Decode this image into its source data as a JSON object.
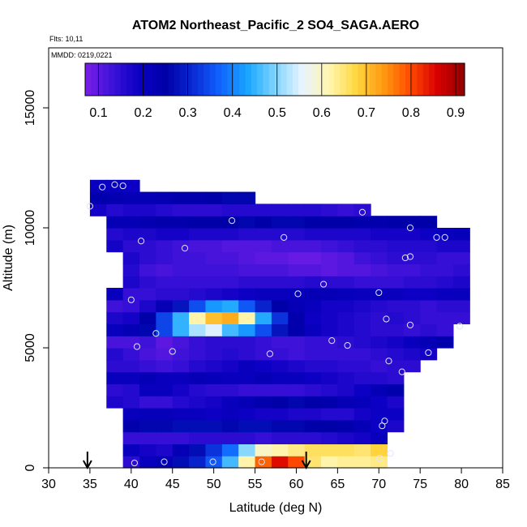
{
  "chart_data": {
    "type": "heatmap",
    "title": "ATOM2 Northeast_Pacific_2 SO4_SAGA.AERO",
    "annotations": {
      "flights": "Flts: 10,11",
      "dates": "MMDD: 0219,0221"
    },
    "xlabel": "Latitude (deg N)",
    "ylabel": "Altitude (m)",
    "xlim": [
      30,
      85
    ],
    "ylim": [
      0,
      17500
    ],
    "x_ticks": [
      30,
      35,
      40,
      45,
      50,
      55,
      60,
      65,
      70,
      75,
      80,
      85
    ],
    "y_ticks": [
      0,
      5000,
      10000,
      15000
    ],
    "grid": false,
    "colorbar": {
      "placement": "top-inside",
      "range": [
        0.07,
        0.92
      ],
      "ticks": [
        0.1,
        0.2,
        0.3,
        0.4,
        0.5,
        0.6,
        0.7,
        0.8,
        0.9
      ],
      "colors": [
        "#7a1ee8",
        "#3d12d9",
        "#0a00c2",
        "#0000a8",
        "#0a2bd6",
        "#1065ff",
        "#19a6ff",
        "#7fd4ff",
        "#e8f4ff",
        "#fff6b0",
        "#ffd640",
        "#ff9a10",
        "#ff4a00",
        "#d80000",
        "#900000"
      ]
    },
    "arrows_at_latitude": [
      34.7,
      61.2
    ],
    "grid_x": [
      36,
      38,
      40,
      42,
      44,
      46,
      48,
      50,
      52,
      54,
      56,
      58,
      60,
      62,
      64,
      66,
      68,
      70,
      72,
      74,
      76,
      78,
      80
    ],
    "grid_y": [
      250,
      750,
      1250,
      1750,
      2250,
      2750,
      3250,
      3750,
      4250,
      4750,
      5250,
      5750,
      6250,
      6750,
      7250,
      7750,
      8250,
      8750,
      9250,
      9750,
      10250,
      10750,
      11250,
      11750
    ],
    "values": [
      [
        null,
        null,
        0.15,
        0.2,
        0.22,
        0.27,
        0.3,
        0.36,
        0.46,
        0.62,
        0.78,
        0.85,
        0.8,
        0.65,
        0.62,
        0.63,
        0.63,
        0.64,
        null,
        null,
        null,
        null,
        null
      ],
      [
        null,
        null,
        0.2,
        0.18,
        0.17,
        0.22,
        0.27,
        0.32,
        0.38,
        0.5,
        0.6,
        0.62,
        0.64,
        0.66,
        0.66,
        0.66,
        0.65,
        0.68,
        null,
        null,
        null,
        null,
        null
      ],
      [
        null,
        null,
        0.14,
        0.14,
        0.14,
        0.14,
        0.15,
        0.15,
        0.15,
        0.15,
        0.14,
        0.15,
        0.15,
        0.15,
        0.16,
        0.17,
        0.18,
        0.2,
        null,
        null,
        null,
        null,
        null
      ],
      [
        null,
        null,
        0.24,
        0.26,
        0.26,
        0.27,
        0.27,
        0.27,
        0.26,
        0.27,
        0.27,
        0.26,
        0.26,
        0.25,
        0.25,
        0.24,
        0.22,
        0.19,
        0.17,
        null,
        null,
        null,
        null
      ],
      [
        null,
        null,
        0.2,
        0.21,
        0.21,
        0.2,
        0.2,
        0.19,
        0.2,
        0.19,
        0.18,
        0.18,
        0.17,
        0.17,
        0.16,
        0.16,
        0.18,
        0.19,
        0.19,
        null,
        null,
        null,
        null
      ],
      [
        null,
        0.17,
        0.16,
        0.14,
        0.14,
        0.16,
        0.17,
        0.18,
        0.2,
        0.22,
        0.24,
        0.25,
        0.26,
        0.25,
        0.24,
        0.22,
        0.21,
        0.19,
        0.17,
        null,
        null,
        null,
        null
      ],
      [
        null,
        0.15,
        0.16,
        0.2,
        0.2,
        0.18,
        0.16,
        0.15,
        0.15,
        0.14,
        0.14,
        0.14,
        0.14,
        0.15,
        0.16,
        0.17,
        0.19,
        0.22,
        0.24,
        null,
        null,
        null,
        null
      ],
      [
        null,
        0.2,
        0.2,
        0.22,
        0.2,
        0.2,
        0.22,
        0.21,
        0.2,
        0.2,
        0.22,
        0.2,
        0.2,
        0.19,
        0.18,
        0.17,
        0.16,
        0.16,
        0.15,
        null,
        null,
        null,
        null
      ],
      [
        null,
        0.15,
        0.15,
        0.14,
        0.13,
        0.14,
        0.16,
        0.17,
        0.18,
        0.2,
        0.19,
        0.18,
        0.17,
        0.16,
        0.16,
        0.15,
        0.15,
        0.14,
        0.15,
        0.15,
        null,
        null,
        null
      ],
      [
        null,
        0.16,
        0.14,
        0.12,
        0.11,
        0.13,
        0.14,
        0.15,
        0.16,
        0.15,
        0.14,
        0.14,
        0.13,
        0.14,
        0.14,
        0.14,
        0.14,
        0.15,
        0.16,
        0.17,
        0.18,
        null,
        null
      ],
      [
        null,
        0.12,
        0.12,
        0.13,
        0.1,
        0.12,
        0.14,
        0.15,
        0.15,
        0.15,
        0.14,
        0.13,
        0.13,
        0.14,
        0.14,
        0.15,
        0.16,
        0.17,
        0.18,
        0.2,
        0.22,
        0.24,
        null
      ],
      [
        null,
        0.2,
        0.22,
        0.26,
        0.34,
        0.45,
        0.52,
        0.55,
        0.46,
        0.42,
        0.35,
        0.28,
        0.24,
        0.2,
        0.18,
        0.17,
        0.16,
        0.15,
        0.15,
        0.14,
        0.15,
        0.14,
        null
      ],
      [
        null,
        0.17,
        0.18,
        0.25,
        0.34,
        0.45,
        0.62,
        0.7,
        0.72,
        0.62,
        0.44,
        0.32,
        0.24,
        0.19,
        0.18,
        0.17,
        0.16,
        0.15,
        0.16,
        0.15,
        0.14,
        0.14,
        0.14
      ],
      [
        null,
        0.13,
        0.14,
        0.17,
        0.22,
        0.28,
        0.35,
        0.42,
        0.44,
        0.36,
        0.3,
        0.25,
        0.22,
        0.2,
        0.18,
        0.18,
        0.17,
        0.16,
        0.15,
        0.15,
        0.14,
        0.15,
        0.15
      ],
      [
        null,
        0.2,
        0.14,
        0.14,
        0.15,
        0.15,
        0.16,
        0.17,
        0.18,
        0.19,
        0.2,
        0.2,
        0.21,
        0.22,
        0.22,
        0.21,
        0.2,
        0.2,
        0.2,
        0.19,
        0.19,
        0.2,
        0.2
      ],
      [
        null,
        null,
        0.17,
        0.15,
        0.14,
        0.14,
        0.14,
        0.14,
        0.14,
        0.15,
        0.15,
        0.15,
        0.15,
        0.16,
        0.15,
        0.15,
        0.14,
        0.14,
        0.14,
        0.15,
        0.15,
        0.16,
        0.17
      ],
      [
        null,
        null,
        0.16,
        0.13,
        0.12,
        0.13,
        0.13,
        0.13,
        0.13,
        0.12,
        0.12,
        0.12,
        0.11,
        0.11,
        0.1,
        0.11,
        0.11,
        0.12,
        0.13,
        0.13,
        0.14,
        0.14,
        0.15
      ],
      [
        null,
        null,
        0.17,
        0.15,
        0.14,
        0.13,
        0.13,
        0.12,
        0.12,
        0.11,
        0.1,
        0.1,
        0.09,
        0.09,
        0.1,
        0.11,
        0.13,
        0.14,
        0.15,
        0.15,
        0.15,
        0.14,
        0.14
      ],
      [
        null,
        0.18,
        0.15,
        0.15,
        0.14,
        0.13,
        0.12,
        0.12,
        0.11,
        0.11,
        0.11,
        0.12,
        0.12,
        0.12,
        0.13,
        0.14,
        0.15,
        0.15,
        0.16,
        0.16,
        0.16,
        0.17,
        0.17
      ],
      [
        null,
        0.16,
        0.17,
        0.17,
        0.18,
        0.18,
        0.17,
        0.17,
        0.17,
        0.16,
        0.16,
        0.16,
        0.16,
        0.17,
        0.17,
        0.17,
        0.17,
        0.18,
        0.18,
        0.18,
        0.19,
        0.2,
        0.21
      ],
      [
        null,
        0.22,
        0.22,
        0.23,
        0.24,
        0.24,
        0.25,
        0.25,
        0.25,
        0.26,
        0.25,
        0.26,
        0.26,
        0.25,
        0.25,
        0.25,
        0.24,
        0.24,
        0.25,
        0.25,
        0.25,
        null,
        null
      ],
      [
        0.18,
        0.16,
        0.17,
        0.17,
        0.16,
        0.15,
        0.15,
        0.15,
        0.16,
        0.16,
        0.16,
        0.16,
        0.16,
        0.16,
        0.15,
        0.14,
        0.15,
        null,
        null,
        null,
        null,
        null,
        null
      ],
      [
        0.24,
        0.23,
        0.22,
        0.22,
        0.23,
        0.24,
        0.24,
        0.25,
        0.26,
        0.26,
        null,
        null,
        null,
        null,
        null,
        null,
        null,
        null,
        null,
        null,
        null,
        null,
        null
      ],
      [
        0.2,
        0.2,
        0.19,
        null,
        null,
        null,
        null,
        null,
        null,
        null,
        null,
        null,
        null,
        null,
        null,
        null,
        null,
        null,
        null,
        null,
        null,
        null,
        null
      ]
    ],
    "sample_points": [
      [
        36.5,
        11700
      ],
      [
        38,
        11800
      ],
      [
        39,
        11750
      ],
      [
        35,
        10900
      ],
      [
        52.2,
        10300
      ],
      [
        68,
        10650
      ],
      [
        41.2,
        9450
      ],
      [
        46.5,
        9150
      ],
      [
        58.5,
        9600
      ],
      [
        73.8,
        10000
      ],
      [
        77,
        9600
      ],
      [
        78,
        9600
      ],
      [
        73.2,
        8750
      ],
      [
        73.8,
        8800
      ],
      [
        63.3,
        7650
      ],
      [
        60.2,
        7250
      ],
      [
        70,
        7300
      ],
      [
        40,
        7000
      ],
      [
        70.9,
        6200
      ],
      [
        73.8,
        5950
      ],
      [
        79.8,
        5900
      ],
      [
        43,
        5600
      ],
      [
        40.7,
        5050
      ],
      [
        64.3,
        5300
      ],
      [
        66.2,
        5100
      ],
      [
        76,
        4800
      ],
      [
        45,
        4850
      ],
      [
        56.8,
        4750
      ],
      [
        71.2,
        4450
      ],
      [
        72.8,
        4000
      ],
      [
        70.7,
        1950
      ],
      [
        70.4,
        1750
      ],
      [
        40.4,
        200
      ],
      [
        44,
        250
      ],
      [
        49.9,
        250
      ],
      [
        55.8,
        250
      ],
      [
        70.1,
        400
      ],
      [
        71.4,
        600
      ]
    ]
  }
}
